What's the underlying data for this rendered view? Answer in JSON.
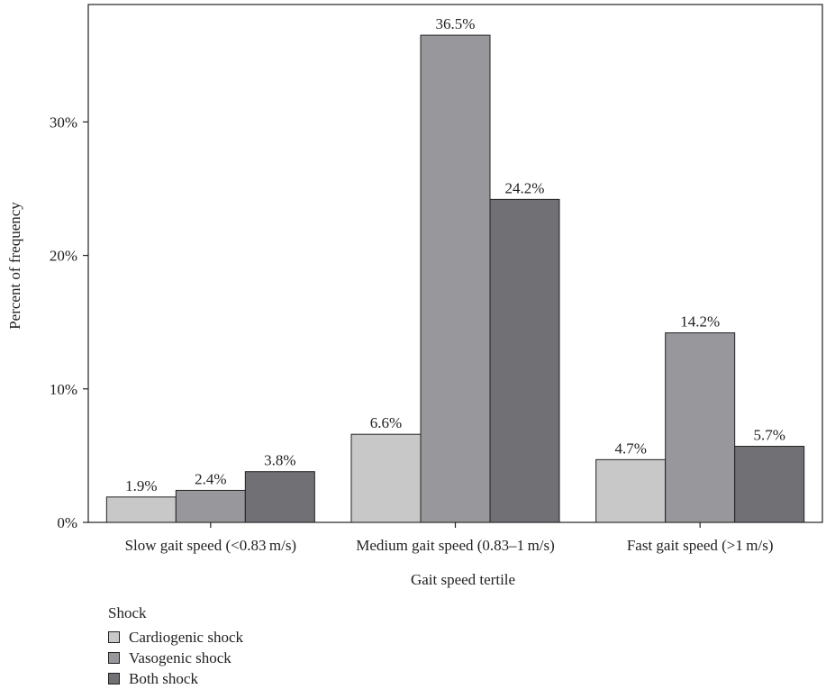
{
  "chart_data": {
    "type": "bar",
    "categories": [
      "Slow gait speed (<0.83 m/s)",
      "Medium gait speed (0.83–1 m/s)",
      "Fast gait speed (>1 m/s)"
    ],
    "series": [
      {
        "name": "Cardiogenic shock",
        "values": [
          1.9,
          6.6,
          4.7
        ],
        "labels": [
          "1.9%",
          "6.6%",
          "4.7%"
        ],
        "color": "#c8c8c8"
      },
      {
        "name": "Vasogenic shock",
        "values": [
          2.4,
          36.5,
          14.2
        ],
        "labels": [
          "2.4%",
          "36.5%",
          "14.2%"
        ],
        "color": "#98989c"
      },
      {
        "name": "Both shock",
        "values": [
          3.8,
          24.2,
          5.7
        ],
        "labels": [
          "3.8%",
          "24.2%",
          "5.7%"
        ],
        "color": "#707075"
      }
    ],
    "xlabel": "Gait speed tertile",
    "ylabel": "Percent of frequency",
    "ylim": [
      0,
      38.8
    ],
    "yticks": [
      0,
      10,
      20,
      30
    ],
    "ytick_labels": [
      "0%",
      "10%",
      "20%",
      "30%"
    ],
    "grid": false,
    "legend": {
      "title": "Shock",
      "placement": "bottom-left"
    }
  }
}
